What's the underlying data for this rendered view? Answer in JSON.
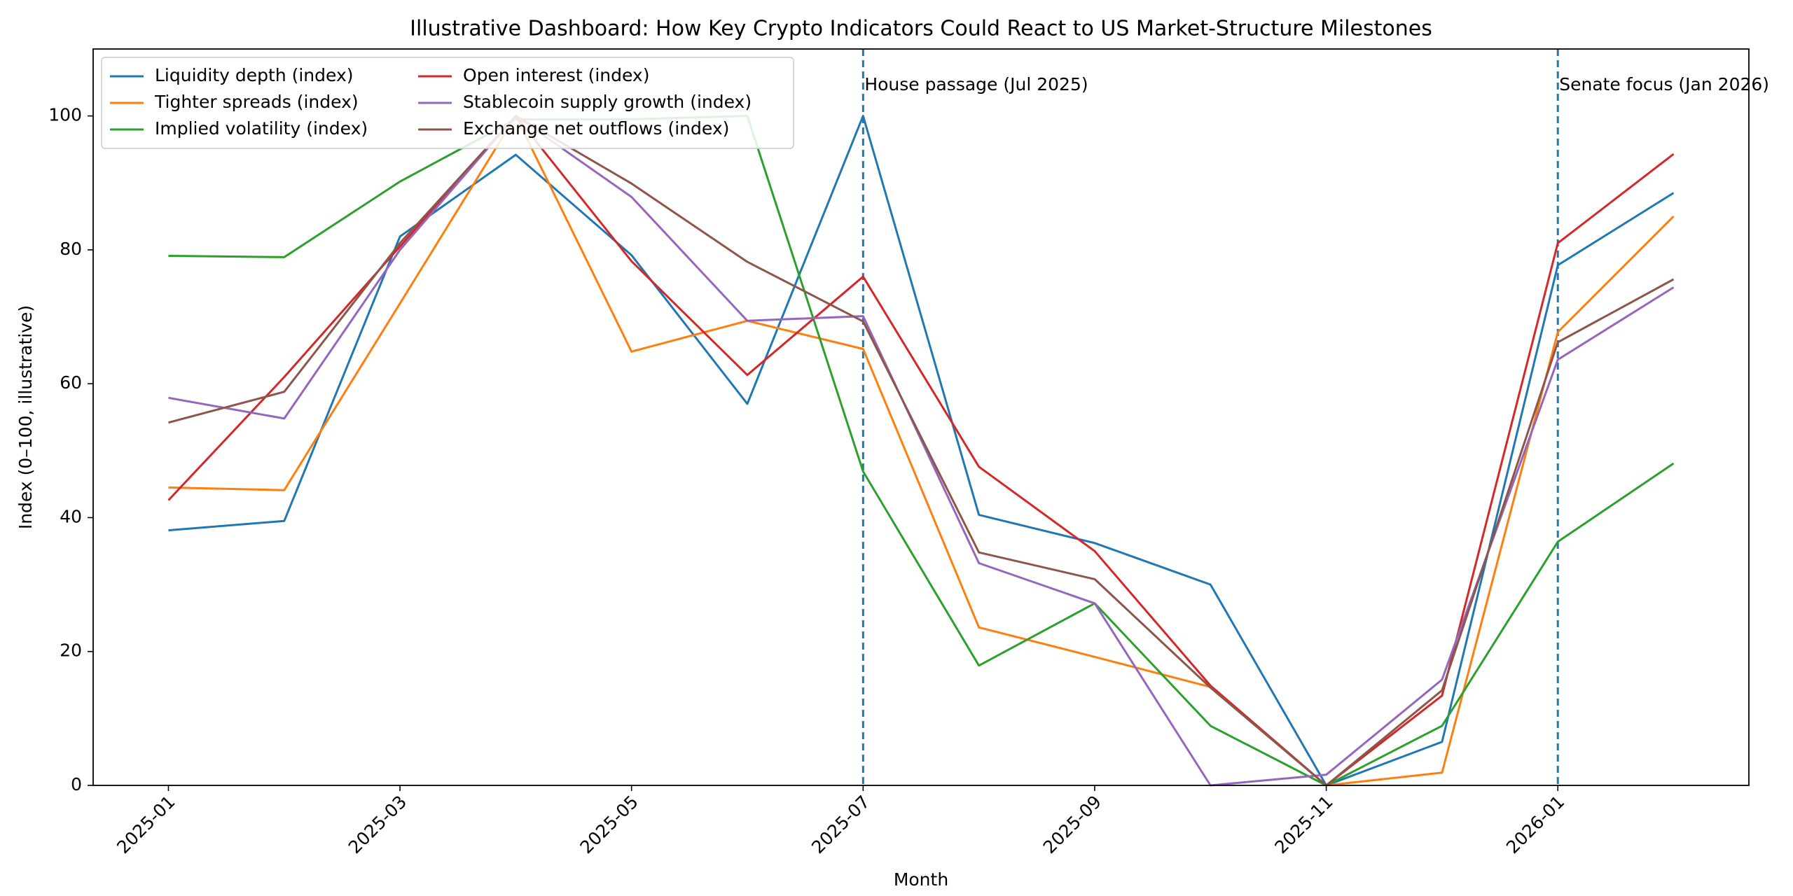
{
  "chart_data": {
    "type": "line",
    "title": "Illustrative Dashboard: How Key Crypto Indicators Could React to US Market-Structure Milestones",
    "xlabel": "Month",
    "ylabel": "Index (0–100, illustrative)",
    "x": [
      "2025-01",
      "2025-02",
      "2025-03",
      "2025-04",
      "2025-05",
      "2025-06",
      "2025-07",
      "2025-08",
      "2025-09",
      "2025-10",
      "2025-11",
      "2025-12",
      "2026-01",
      "2026-02"
    ],
    "xticks": [
      "2025-01",
      "2025-03",
      "2025-05",
      "2025-07",
      "2025-09",
      "2025-11",
      "2026-01"
    ],
    "ylim": [
      0,
      110
    ],
    "yticks": [
      0,
      20,
      40,
      60,
      80,
      100
    ],
    "legend": "upper left",
    "series": [
      {
        "name": "Liquidity depth (index)",
        "color": "#1f77b4",
        "values": [
          38.1,
          39.5,
          82,
          94.2,
          79.2,
          57,
          100,
          40.4,
          36.2,
          30,
          0,
          6.5,
          77.7,
          88.5
        ]
      },
      {
        "name": "Tighter spreads (index)",
        "color": "#ff7f0e",
        "values": [
          44.5,
          44.1,
          72,
          100,
          64.8,
          69.4,
          65.2,
          23.6,
          19.2,
          14.7,
          0,
          1.9,
          67.7,
          85
        ]
      },
      {
        "name": "Implied volatility (index)",
        "color": "#2ca02c",
        "values": [
          79.1,
          78.9,
          90.2,
          99.5,
          99.5,
          100,
          46.9,
          17.9,
          27.2,
          8.9,
          0,
          8.9,
          36.4,
          48.1
        ]
      },
      {
        "name": "Open interest (index)",
        "color": "#d62728",
        "values": [
          42.6,
          61,
          80.5,
          100,
          78.3,
          61.3,
          76,
          47.6,
          35,
          14.9,
          0,
          13.4,
          81,
          94.3
        ]
      },
      {
        "name": "Stablecoin supply growth (index)",
        "color": "#9467bd",
        "values": [
          57.9,
          54.8,
          80,
          100,
          87.9,
          69.4,
          70.1,
          33.2,
          27.2,
          0,
          1.6,
          15.8,
          63.6,
          74.4
        ]
      },
      {
        "name": "Exchange net outflows (index)",
        "color": "#8c564b",
        "values": [
          54.2,
          58.8,
          81,
          100,
          89.9,
          78.2,
          69.3,
          34.8,
          30.8,
          14.6,
          0,
          14.2,
          66.2,
          75.6
        ]
      }
    ],
    "vlines": [
      {
        "x": "2025-07",
        "label": "House passage (Jul 2025)",
        "color": "#1f77b4"
      },
      {
        "x": "2026-01",
        "label": "Senate focus (Jan 2026)",
        "color": "#1f77b4"
      }
    ]
  }
}
